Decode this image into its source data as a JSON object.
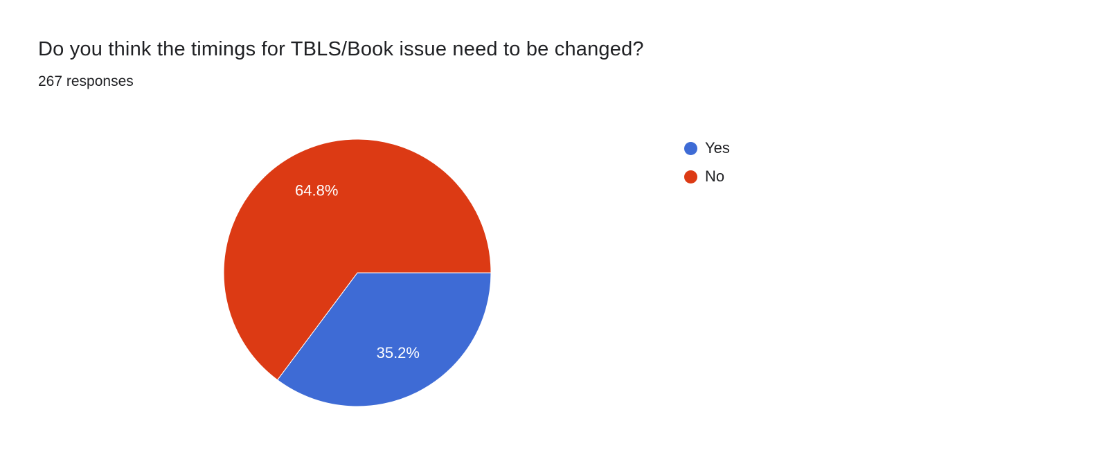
{
  "header": {
    "title": "Do you think the timings for TBLS/Book issue need to be changed?",
    "responses": "267 responses"
  },
  "chart_data": {
    "type": "pie",
    "title": "Do you think the timings for TBLS/Book issue need to be changed?",
    "subtitle": "267 responses",
    "start_angle": "east-clockwise",
    "legend_position": "right",
    "label_color": "#ffffff",
    "label_font_size": 22,
    "slices": [
      {
        "label": "Yes",
        "value_pct": 35.2,
        "display": "35.2%",
        "color": "#3e6bd5"
      },
      {
        "label": "No",
        "value_pct": 64.8,
        "display": "64.8%",
        "color": "#dc3a14"
      }
    ]
  }
}
